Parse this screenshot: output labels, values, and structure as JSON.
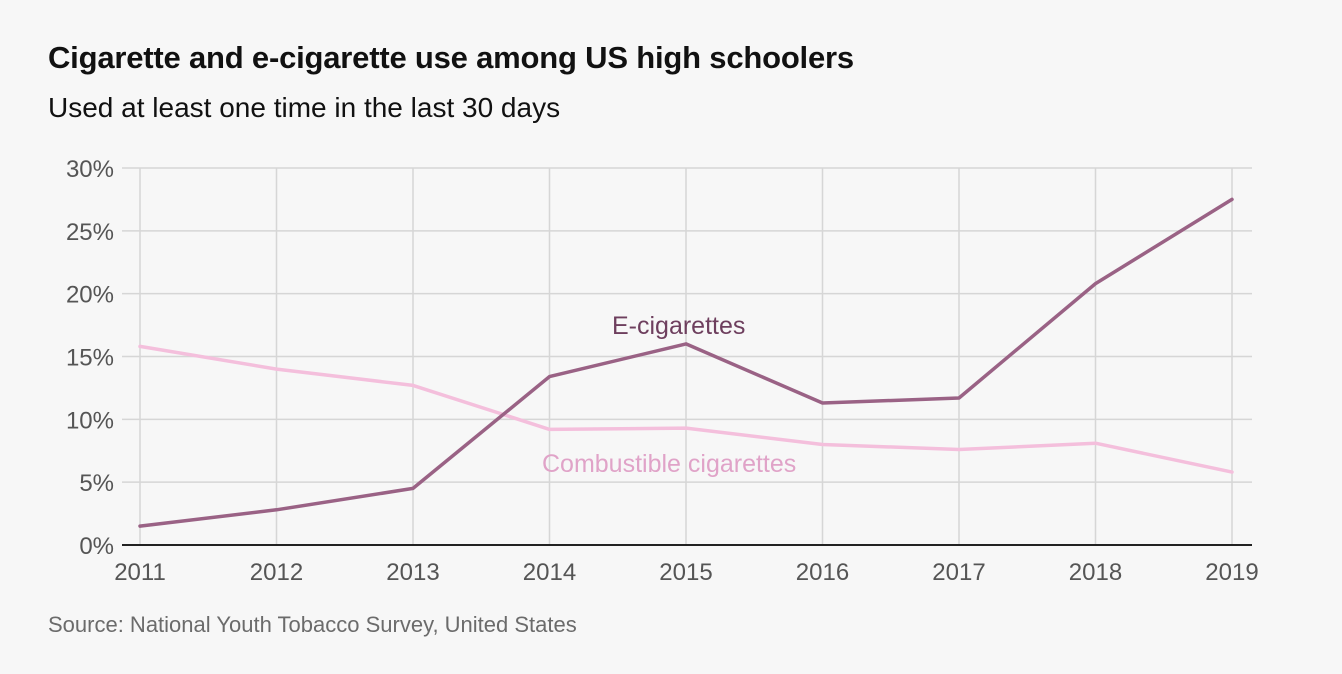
{
  "header": {
    "title": "Cigarette and e-cigarette use among US high schoolers",
    "subtitle": "Used at least one time in the last 30 days"
  },
  "footer": {
    "source": "Source: National Youth Tobacco Survey, United States"
  },
  "chart_data": {
    "type": "line",
    "title": "Cigarette and e-cigarette use among US high schoolers",
    "subtitle": "Used at least one time in the last 30 days",
    "x": [
      "2011",
      "2012",
      "2013",
      "2014",
      "2015",
      "2016",
      "2017",
      "2018",
      "2019"
    ],
    "xlabel": "",
    "ylabel": "",
    "ylim": [
      0,
      30
    ],
    "yticks": [
      0,
      5,
      10,
      15,
      20,
      25,
      30
    ],
    "ytick_labels": [
      "0%",
      "5%",
      "10%",
      "15%",
      "20%",
      "25%",
      "30%"
    ],
    "grid": true,
    "legend": "inline labels",
    "series": [
      {
        "name": "E-cigarettes",
        "color": "#9a6285",
        "values": [
          1.5,
          2.8,
          4.5,
          13.4,
          16.0,
          11.3,
          11.7,
          20.8,
          27.5
        ]
      },
      {
        "name": "Combustible cigarettes",
        "color": "#f4bfdc",
        "label_color": "#e0a3c8",
        "values": [
          15.8,
          14.0,
          12.7,
          9.2,
          9.3,
          8.0,
          7.6,
          8.1,
          5.8
        ]
      }
    ]
  }
}
